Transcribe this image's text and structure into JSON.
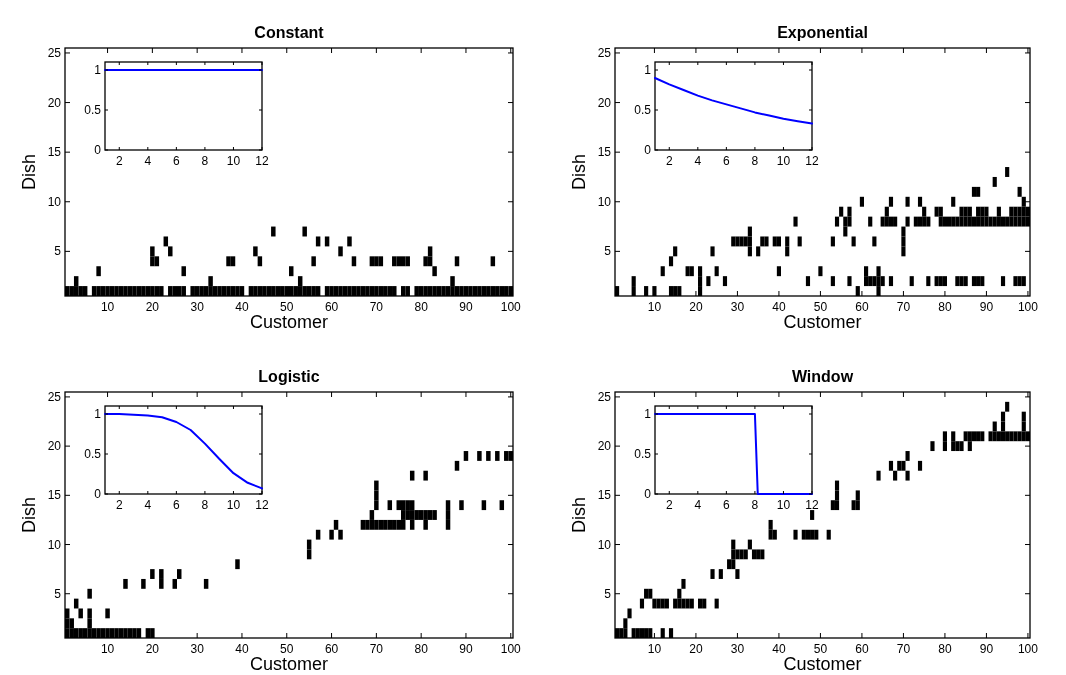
{
  "chart_data": [
    {
      "type": "scatter",
      "title": "Constant",
      "xlabel": "Customer",
      "ylabel": "Dish",
      "marker": "square",
      "xlim": [
        0.5,
        100.5
      ],
      "ylim": [
        0.5,
        25.5
      ],
      "xticks": [
        10,
        20,
        30,
        40,
        50,
        60,
        70,
        80,
        90,
        100
      ],
      "yticks": [
        5,
        10,
        15,
        20,
        25
      ],
      "series": [
        {
          "color": "#000000",
          "x": [
            1,
            2,
            3,
            4,
            5,
            7,
            8,
            9,
            10,
            11,
            12,
            13,
            14,
            15,
            16,
            17,
            18,
            19,
            20,
            21,
            22,
            24,
            25,
            26,
            27,
            29,
            30,
            31,
            32,
            33,
            34,
            35,
            36,
            37,
            38,
            39,
            40,
            42,
            43,
            44,
            45,
            46,
            47,
            48,
            49,
            50,
            51,
            52,
            53,
            54,
            55,
            56,
            57,
            59,
            60,
            61,
            62,
            63,
            64,
            65,
            66,
            67,
            68,
            69,
            70,
            71,
            72,
            73,
            74,
            76,
            77,
            79,
            80,
            81,
            82,
            83,
            84,
            85,
            86,
            87,
            88,
            89,
            90,
            91,
            92,
            93,
            94,
            95,
            96,
            97,
            98,
            99,
            100
          ],
          "values": [
            1,
            1,
            1,
            1,
            1,
            1,
            1,
            1,
            1,
            1,
            1,
            1,
            1,
            1,
            1,
            1,
            1,
            1,
            1,
            1,
            1,
            1,
            1,
            1,
            1,
            1,
            1,
            1,
            1,
            1,
            1,
            1,
            1,
            1,
            1,
            1,
            1,
            1,
            1,
            1,
            1,
            1,
            1,
            1,
            1,
            1,
            1,
            1,
            1,
            1,
            1,
            1,
            1,
            1,
            1,
            1,
            1,
            1,
            1,
            1,
            1,
            1,
            1,
            1,
            1,
            1,
            1,
            1,
            1,
            1,
            1,
            1,
            1,
            1,
            1,
            1,
            1,
            1,
            1,
            1,
            1,
            1,
            1,
            1,
            1,
            1,
            1,
            1,
            1,
            1,
            1,
            1,
            1
          ]
        },
        {
          "color": "#000000",
          "x": [
            3,
            33,
            53,
            87
          ],
          "values": [
            2,
            2,
            2,
            2
          ]
        },
        {
          "color": "#000000",
          "x": [
            8,
            27,
            51,
            83
          ],
          "values": [
            3,
            3,
            3,
            3
          ]
        },
        {
          "color": "#000000",
          "x": [
            20,
            21,
            37,
            38,
            44,
            56,
            65,
            69,
            70,
            71,
            74,
            75,
            76,
            77,
            81,
            82,
            88,
            96
          ],
          "values": [
            4,
            4,
            4,
            4,
            4,
            4,
            4,
            4,
            4,
            4,
            4,
            4,
            4,
            4,
            4,
            4,
            4,
            4
          ]
        },
        {
          "color": "#000000",
          "x": [
            20,
            24,
            43,
            62,
            82
          ],
          "values": [
            5,
            5,
            5,
            5,
            5
          ]
        },
        {
          "color": "#000000",
          "x": [
            23,
            57,
            59,
            64
          ],
          "values": [
            6,
            6,
            6,
            6
          ]
        },
        {
          "color": "#000000",
          "x": [
            47,
            54
          ],
          "values": [
            7,
            7
          ]
        }
      ]
    },
    {
      "type": "line",
      "xlim": [
        1,
        12
      ],
      "ylim": [
        0,
        1.1
      ],
      "xticks": [
        2,
        4,
        6,
        8,
        10,
        12
      ],
      "yticks": [
        0,
        0.5,
        1
      ],
      "x": [
        1,
        2,
        3,
        4,
        5,
        6,
        7,
        8,
        9,
        10,
        11,
        12
      ],
      "series": [
        {
          "color": "#0000ff",
          "values": [
            1,
            1,
            1,
            1,
            1,
            1,
            1,
            1,
            1,
            1,
            1,
            1
          ]
        }
      ]
    },
    {
      "type": "scatter",
      "title": "Exponential",
      "xlabel": "Customer",
      "ylabel": "Dish",
      "marker": "square",
      "xlim": [
        0.5,
        100.5
      ],
      "ylim": [
        0.5,
        25.5
      ],
      "xticks": [
        10,
        20,
        30,
        40,
        50,
        60,
        70,
        80,
        90,
        100
      ],
      "yticks": [
        5,
        10,
        15,
        20,
        25
      ],
      "series": [
        {
          "color": "#000000",
          "x": [
            1,
            5,
            8,
            10,
            14,
            15,
            16,
            21,
            59,
            64
          ],
          "values": [
            1,
            1,
            1,
            1,
            1,
            1,
            1,
            1,
            1,
            1
          ]
        },
        {
          "color": "#000000",
          "x": [
            5,
            21,
            23,
            27,
            47,
            53,
            57,
            61,
            62,
            63,
            64,
            65,
            67,
            72,
            76,
            78,
            79,
            80,
            83,
            84,
            85,
            87,
            88,
            89,
            94,
            97,
            98,
            99
          ],
          "values": [
            2,
            2,
            2,
            2,
            2,
            2,
            2,
            2,
            2,
            2,
            2,
            2,
            2,
            2,
            2,
            2,
            2,
            2,
            2,
            2,
            2,
            2,
            2,
            2,
            2,
            2,
            2,
            2
          ]
        },
        {
          "color": "#000000",
          "x": [
            12,
            18,
            19,
            21,
            25,
            40,
            50,
            61,
            64
          ],
          "values": [
            3,
            3,
            3,
            3,
            3,
            3,
            3,
            3,
            3
          ]
        },
        {
          "color": "#000000",
          "x": [
            14
          ],
          "values": [
            4
          ]
        },
        {
          "color": "#000000",
          "x": [
            15,
            24,
            33,
            35,
            42,
            70
          ],
          "values": [
            5,
            5,
            5,
            5,
            5,
            5
          ]
        },
        {
          "color": "#000000",
          "x": [
            29,
            30,
            31,
            32,
            33,
            36,
            37,
            39,
            40,
            42,
            45,
            53,
            58,
            63,
            70
          ],
          "values": [
            6,
            6,
            6,
            6,
            6,
            6,
            6,
            6,
            6,
            6,
            6,
            6,
            6,
            6,
            6
          ]
        },
        {
          "color": "#000000",
          "x": [
            33,
            56,
            70
          ],
          "values": [
            7,
            7,
            7
          ]
        },
        {
          "color": "#000000",
          "x": [
            44,
            54,
            56,
            57,
            62,
            65,
            66,
            67,
            68,
            71,
            73,
            74,
            75,
            76,
            79,
            80,
            81,
            82,
            83,
            84,
            85,
            86,
            87,
            88,
            89,
            90,
            91,
            92,
            93,
            94,
            95,
            96,
            97,
            98,
            99,
            100
          ],
          "values": [
            8,
            8,
            8,
            8,
            8,
            8,
            8,
            8,
            8,
            8,
            8,
            8,
            8,
            8,
            8,
            8,
            8,
            8,
            8,
            8,
            8,
            8,
            8,
            8,
            8,
            8,
            8,
            8,
            8,
            8,
            8,
            8,
            8,
            8,
            8,
            8
          ]
        },
        {
          "color": "#000000",
          "x": [
            55,
            57,
            66,
            75,
            78,
            79,
            84,
            85,
            86,
            88,
            89,
            90,
            93,
            96,
            97,
            98,
            99,
            100
          ],
          "values": [
            9,
            9,
            9,
            9,
            9,
            9,
            9,
            9,
            9,
            9,
            9,
            9,
            9,
            9,
            9,
            9,
            9,
            9
          ]
        },
        {
          "color": "#000000",
          "x": [
            60,
            67,
            71,
            74,
            82,
            99
          ],
          "values": [
            10,
            10,
            10,
            10,
            10,
            10
          ]
        },
        {
          "color": "#000000",
          "x": [
            87,
            88,
            98
          ],
          "values": [
            11,
            11,
            11
          ]
        },
        {
          "color": "#000000",
          "x": [
            92
          ],
          "values": [
            12
          ]
        },
        {
          "color": "#000000",
          "x": [
            95
          ],
          "values": [
            13
          ]
        }
      ]
    },
    {
      "type": "line",
      "xlim": [
        1,
        12
      ],
      "ylim": [
        0,
        1.1
      ],
      "xticks": [
        2,
        4,
        6,
        8,
        10,
        12
      ],
      "yticks": [
        0,
        0.5,
        1
      ],
      "x": [
        1,
        2,
        3,
        4,
        5,
        6,
        7,
        8,
        9,
        10,
        11,
        12
      ],
      "series": [
        {
          "color": "#0000ff",
          "values": [
            0.9,
            0.82,
            0.75,
            0.68,
            0.62,
            0.57,
            0.52,
            0.47,
            0.43,
            0.39,
            0.36,
            0.33
          ]
        }
      ]
    },
    {
      "type": "scatter",
      "title": "Logistic",
      "xlabel": "Customer",
      "ylabel": "Dish",
      "marker": "square",
      "xlim": [
        0.5,
        100.5
      ],
      "ylim": [
        0.5,
        25.5
      ],
      "xticks": [
        10,
        20,
        30,
        40,
        50,
        60,
        70,
        80,
        90,
        100
      ],
      "yticks": [
        5,
        10,
        15,
        20,
        25
      ],
      "series": [
        {
          "color": "#000000",
          "x": [
            1,
            2,
            3,
            4,
            5,
            6,
            7,
            8,
            9,
            10,
            11,
            12,
            13,
            14,
            15,
            16,
            17,
            19,
            20
          ],
          "values": [
            1,
            1,
            1,
            1,
            1,
            1,
            1,
            1,
            1,
            1,
            1,
            1,
            1,
            1,
            1,
            1,
            1,
            1,
            1
          ]
        },
        {
          "color": "#000000",
          "x": [
            1,
            2,
            6
          ],
          "values": [
            2,
            2,
            2
          ]
        },
        {
          "color": "#000000",
          "x": [
            1,
            4,
            6,
            10
          ],
          "values": [
            3,
            3,
            3,
            3
          ]
        },
        {
          "color": "#000000",
          "x": [
            3
          ],
          "values": [
            4
          ]
        },
        {
          "color": "#000000",
          "x": [
            6
          ],
          "values": [
            5
          ]
        },
        {
          "color": "#000000",
          "x": [
            14,
            18,
            22,
            25,
            32
          ],
          "values": [
            6,
            6,
            6,
            6,
            6
          ]
        },
        {
          "color": "#000000",
          "x": [
            20,
            22,
            26
          ],
          "values": [
            7,
            7,
            7
          ]
        },
        {
          "color": "#000000",
          "x": [
            39
          ],
          "values": [
            8
          ]
        },
        {
          "color": "#000000",
          "x": [
            55
          ],
          "values": [
            9
          ]
        },
        {
          "color": "#000000",
          "x": [
            55
          ],
          "values": [
            10
          ]
        },
        {
          "color": "#000000",
          "x": [
            57,
            60,
            62
          ],
          "values": [
            11,
            11,
            11
          ]
        },
        {
          "color": "#000000",
          "x": [
            61,
            67,
            68,
            69,
            70,
            71,
            72,
            73,
            74,
            75,
            76,
            78,
            81,
            86
          ],
          "values": [
            12,
            12,
            12,
            12,
            12,
            12,
            12,
            12,
            12,
            12,
            12,
            12,
            12,
            12
          ]
        },
        {
          "color": "#000000",
          "x": [
            69,
            76,
            77,
            78,
            79,
            80,
            81,
            82,
            83,
            86
          ],
          "values": [
            13,
            13,
            13,
            13,
            13,
            13,
            13,
            13,
            13,
            13
          ]
        },
        {
          "color": "#000000",
          "x": [
            70,
            73,
            75,
            76,
            77,
            78,
            86,
            89,
            94,
            98
          ],
          "values": [
            14,
            14,
            14,
            14,
            14,
            14,
            14,
            14,
            14,
            14
          ]
        },
        {
          "color": "#000000",
          "x": [
            70
          ],
          "values": [
            15
          ]
        },
        {
          "color": "#000000",
          "x": [
            70
          ],
          "values": [
            16
          ]
        },
        {
          "color": "#000000",
          "x": [
            78,
            81
          ],
          "values": [
            17,
            17
          ]
        },
        {
          "color": "#000000",
          "x": [
            88
          ],
          "values": [
            18
          ]
        },
        {
          "color": "#000000",
          "x": [
            90,
            93,
            95,
            97,
            99,
            100
          ],
          "values": [
            19,
            19,
            19,
            19,
            19,
            19
          ]
        }
      ]
    },
    {
      "type": "line",
      "xlim": [
        1,
        12
      ],
      "ylim": [
        0,
        1.1
      ],
      "xticks": [
        2,
        4,
        6,
        8,
        10,
        12
      ],
      "yticks": [
        0,
        0.5,
        1
      ],
      "x": [
        1,
        2,
        3,
        4,
        5,
        6,
        7,
        8,
        9,
        10,
        11,
        12
      ],
      "series": [
        {
          "color": "#0000ff",
          "values": [
            1,
            1,
            0.99,
            0.98,
            0.96,
            0.9,
            0.8,
            0.63,
            0.44,
            0.26,
            0.14,
            0.07
          ]
        }
      ]
    },
    {
      "type": "scatter",
      "title": "Window",
      "xlabel": "Customer",
      "ylabel": "Dish",
      "marker": "square",
      "xlim": [
        0.5,
        100.5
      ],
      "ylim": [
        0.5,
        25.5
      ],
      "xticks": [
        10,
        20,
        30,
        40,
        50,
        60,
        70,
        80,
        90,
        100
      ],
      "yticks": [
        5,
        10,
        15,
        20,
        25
      ],
      "series": [
        {
          "color": "#000000",
          "x": [
            1,
            2,
            3,
            5,
            6,
            7,
            8,
            9,
            12,
            14
          ],
          "values": [
            1,
            1,
            1,
            1,
            1,
            1,
            1,
            1,
            1,
            1
          ]
        },
        {
          "color": "#000000",
          "x": [
            3
          ],
          "values": [
            2
          ]
        },
        {
          "color": "#000000",
          "x": [
            4
          ],
          "values": [
            3
          ]
        },
        {
          "color": "#000000",
          "x": [
            7,
            10,
            11,
            12,
            13,
            15,
            16,
            17,
            18,
            19,
            21,
            22,
            25
          ],
          "values": [
            4,
            4,
            4,
            4,
            4,
            4,
            4,
            4,
            4,
            4,
            4,
            4,
            4
          ]
        },
        {
          "color": "#000000",
          "x": [
            8,
            9,
            16
          ],
          "values": [
            5,
            5,
            5
          ]
        },
        {
          "color": "#000000",
          "x": [
            17
          ],
          "values": [
            6
          ]
        },
        {
          "color": "#000000",
          "x": [
            24,
            26,
            30
          ],
          "values": [
            7,
            7,
            7
          ]
        },
        {
          "color": "#000000",
          "x": [
            28,
            29
          ],
          "values": [
            8,
            8
          ]
        },
        {
          "color": "#000000",
          "x": [
            29,
            30,
            31,
            32,
            34,
            35,
            36
          ],
          "values": [
            9,
            9,
            9,
            9,
            9,
            9,
            9
          ]
        },
        {
          "color": "#000000",
          "x": [
            29,
            33
          ],
          "values": [
            10,
            10
          ]
        },
        {
          "color": "#000000",
          "x": [
            38,
            39,
            44,
            46,
            47,
            48,
            49,
            52
          ],
          "values": [
            11,
            11,
            11,
            11,
            11,
            11,
            11,
            11
          ]
        },
        {
          "color": "#000000",
          "x": [
            38
          ],
          "values": [
            12
          ]
        },
        {
          "color": "#000000",
          "x": [
            48
          ],
          "values": [
            13
          ]
        },
        {
          "color": "#000000",
          "x": [
            53,
            54,
            58,
            59
          ],
          "values": [
            14,
            14,
            14,
            14
          ]
        },
        {
          "color": "#000000",
          "x": [
            54,
            59
          ],
          "values": [
            15,
            15
          ]
        },
        {
          "color": "#000000",
          "x": [
            54
          ],
          "values": [
            16
          ]
        },
        {
          "color": "#000000",
          "x": [
            64,
            68,
            71
          ],
          "values": [
            17,
            17,
            17
          ]
        },
        {
          "color": "#000000",
          "x": [
            67,
            69,
            70,
            74
          ],
          "values": [
            18,
            18,
            18,
            18
          ]
        },
        {
          "color": "#000000",
          "x": [
            71
          ],
          "values": [
            19
          ]
        },
        {
          "color": "#000000",
          "x": [
            77,
            80,
            82,
            83,
            84,
            86
          ],
          "values": [
            20,
            20,
            20,
            20,
            20,
            20
          ]
        },
        {
          "color": "#000000",
          "x": [
            80,
            82,
            85,
            86,
            87,
            88,
            89,
            91,
            92,
            93,
            94,
            95,
            96,
            97,
            98,
            99,
            100
          ],
          "values": [
            21,
            21,
            21,
            21,
            21,
            21,
            21,
            21,
            21,
            21,
            21,
            21,
            21,
            21,
            21,
            21,
            21
          ]
        },
        {
          "color": "#000000",
          "x": [
            92,
            94,
            99
          ],
          "values": [
            22,
            22,
            22
          ]
        },
        {
          "color": "#000000",
          "x": [
            94,
            99
          ],
          "values": [
            23,
            23
          ]
        },
        {
          "color": "#000000",
          "x": [
            95
          ],
          "values": [
            24
          ]
        }
      ]
    },
    {
      "type": "line",
      "xlim": [
        1,
        12
      ],
      "ylim": [
        0,
        1.1
      ],
      "xticks": [
        2,
        4,
        6,
        8,
        10,
        12
      ],
      "yticks": [
        0,
        0.5,
        1
      ],
      "series": [
        {
          "color": "#0000ff",
          "x": [
            1,
            8,
            8.2,
            12
          ],
          "values": [
            1,
            1,
            0,
            0
          ]
        }
      ]
    }
  ]
}
